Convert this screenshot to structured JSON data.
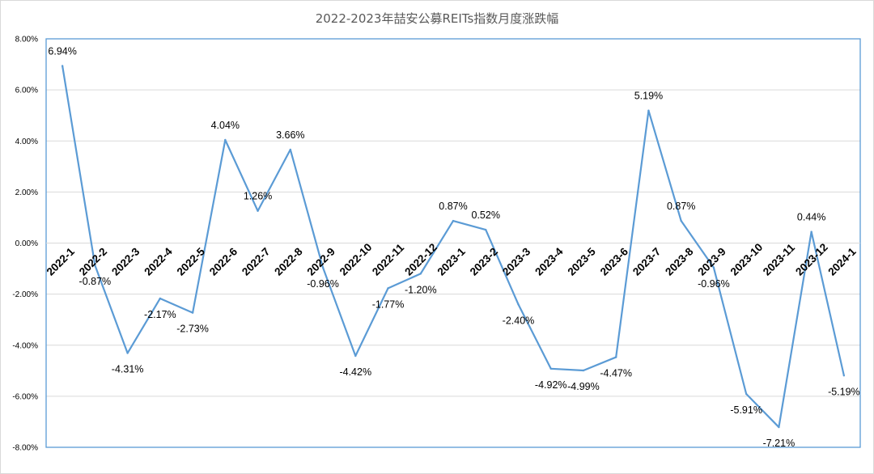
{
  "chart_data": {
    "type": "line",
    "title": "2022-2023年喆安公募REITs指数月度涨跌幅",
    "xlabel": "",
    "ylabel": "",
    "ylim": [
      -8,
      8
    ],
    "ytick_step": 2,
    "ytick_labels": [
      "8.00%",
      "6.00%",
      "4.00%",
      "2.00%",
      "0.00%",
      "-2.00%",
      "-4.00%",
      "-6.00%",
      "-8.00%"
    ],
    "grid": true,
    "legend": "none",
    "line_color": "#5b9bd5",
    "categories": [
      "2022-1",
      "2022-2",
      "2022-3",
      "2022-4",
      "2022-5",
      "2022-6",
      "2022-7",
      "2022-8",
      "2022-9",
      "2022-10",
      "2022-11",
      "2022-12",
      "2023-1",
      "2023-2",
      "2023-3",
      "2023-4",
      "2023-5",
      "2023-6",
      "2023-7",
      "2023-8",
      "2023-9",
      "2023-10",
      "2023-11",
      "2023-12",
      "2024-1"
    ],
    "series": [
      {
        "name": "",
        "values": [
          6.94,
          -0.87,
          -4.31,
          -2.17,
          -2.73,
          4.04,
          1.26,
          3.66,
          -0.96,
          -4.42,
          -1.77,
          -1.2,
          0.87,
          0.52,
          -2.4,
          -4.92,
          -4.99,
          -4.47,
          5.19,
          0.87,
          -0.96,
          -5.91,
          -7.21,
          0.44,
          -5.19
        ],
        "labels": [
          "6.94%",
          "-0.87%",
          "-4.31%",
          "-2.17%",
          "-2.73%",
          "4.04%",
          "1.26%",
          "3.66%",
          "-0.96%",
          "-4.42%",
          "-1.77%",
          "-1.20%",
          "0.87%",
          "0.52%",
          "-2.40%",
          "-4.92%",
          "-4.99%",
          "-4.47%",
          "5.19%",
          "0.87%",
          "-0.96%",
          "-5.91%",
          "-7.21%",
          "0.44%",
          "-5.19%"
        ]
      }
    ]
  }
}
